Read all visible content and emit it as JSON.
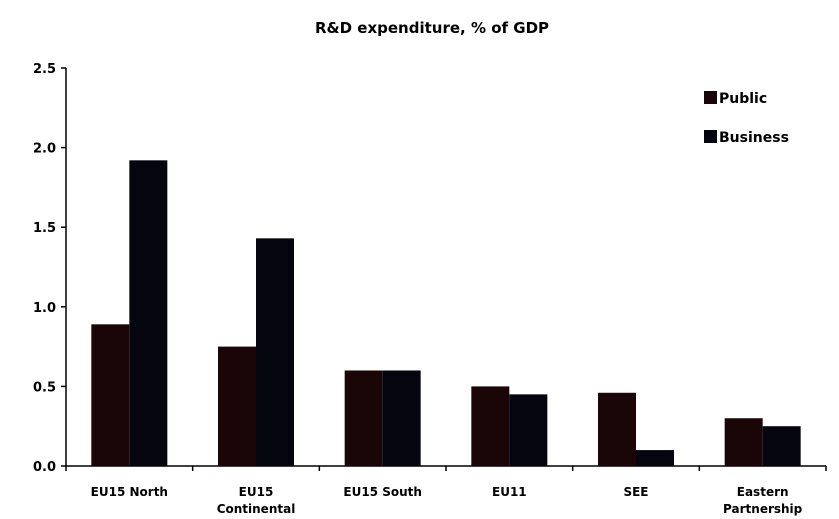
{
  "chart_data": {
    "type": "bar",
    "title": "R&D expenditure, % of GDP",
    "xlabel": "",
    "ylabel": "",
    "ylim": [
      0,
      2.5
    ],
    "yticks": [
      "0.0",
      "0.5",
      "1.0",
      "1.5",
      "2.0",
      "2.5"
    ],
    "grid": false,
    "legend_position": "top-right",
    "categories": [
      [
        "EU15 North"
      ],
      [
        "EU15",
        "Continental"
      ],
      [
        "EU15 South"
      ],
      [
        "EU11"
      ],
      [
        "SEE"
      ],
      [
        "Eastern",
        "Partnership"
      ]
    ],
    "series": [
      {
        "name": "Public",
        "color": "#1a0606",
        "values": [
          0.89,
          0.75,
          0.6,
          0.5,
          0.46,
          0.3
        ]
      },
      {
        "name": "Business",
        "color": "#050510",
        "values": [
          1.92,
          1.43,
          0.6,
          0.45,
          0.1,
          0.25
        ]
      }
    ]
  }
}
